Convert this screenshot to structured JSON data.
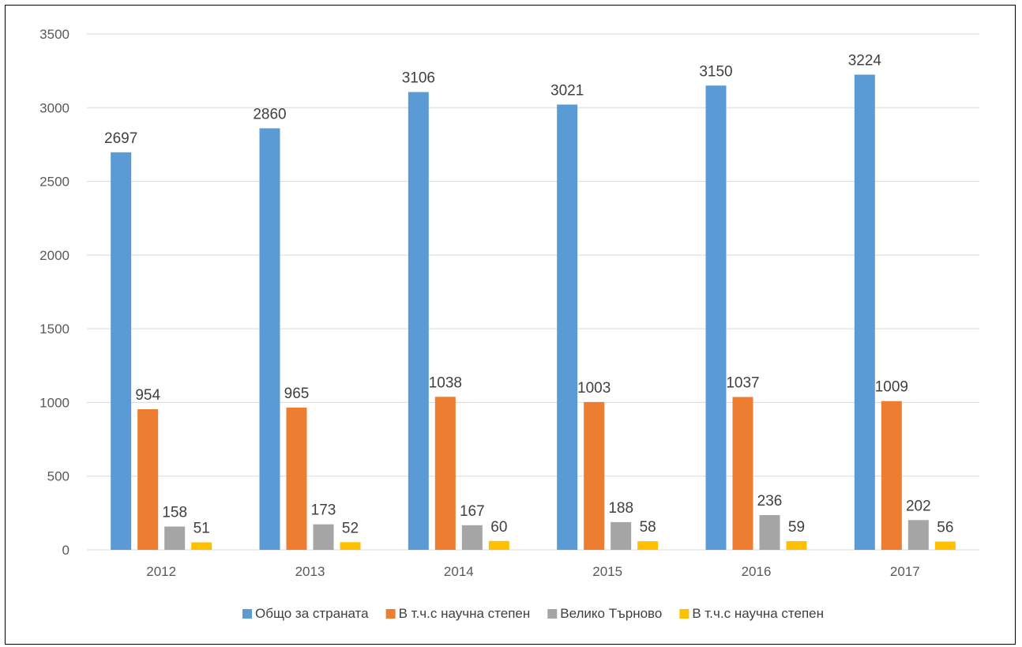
{
  "chart_data": {
    "type": "bar",
    "title": "",
    "xlabel": "",
    "ylabel": "",
    "ylim": [
      0,
      3500
    ],
    "yticks": [
      0,
      500,
      1000,
      1500,
      2000,
      2500,
      3000,
      3500
    ],
    "grid": true,
    "legend_position": "bottom",
    "categories": [
      "2012",
      "2013",
      "2014",
      "2015",
      "2016",
      "2017"
    ],
    "series": [
      {
        "name": "Общо за страната",
        "color": "#5B9BD5",
        "values": [
          2697,
          2860,
          3106,
          3021,
          3150,
          3224
        ]
      },
      {
        "name": "В т.ч.с научна степен",
        "color": "#ED7D31",
        "values": [
          954,
          965,
          1038,
          1003,
          1037,
          1009
        ]
      },
      {
        "name": "Велико Търново",
        "color": "#A5A5A5",
        "values": [
          158,
          173,
          167,
          188,
          236,
          202
        ]
      },
      {
        "name": "В т.ч.с научна степен",
        "color": "#FFC000",
        "values": [
          51,
          52,
          60,
          58,
          59,
          56
        ]
      }
    ]
  }
}
